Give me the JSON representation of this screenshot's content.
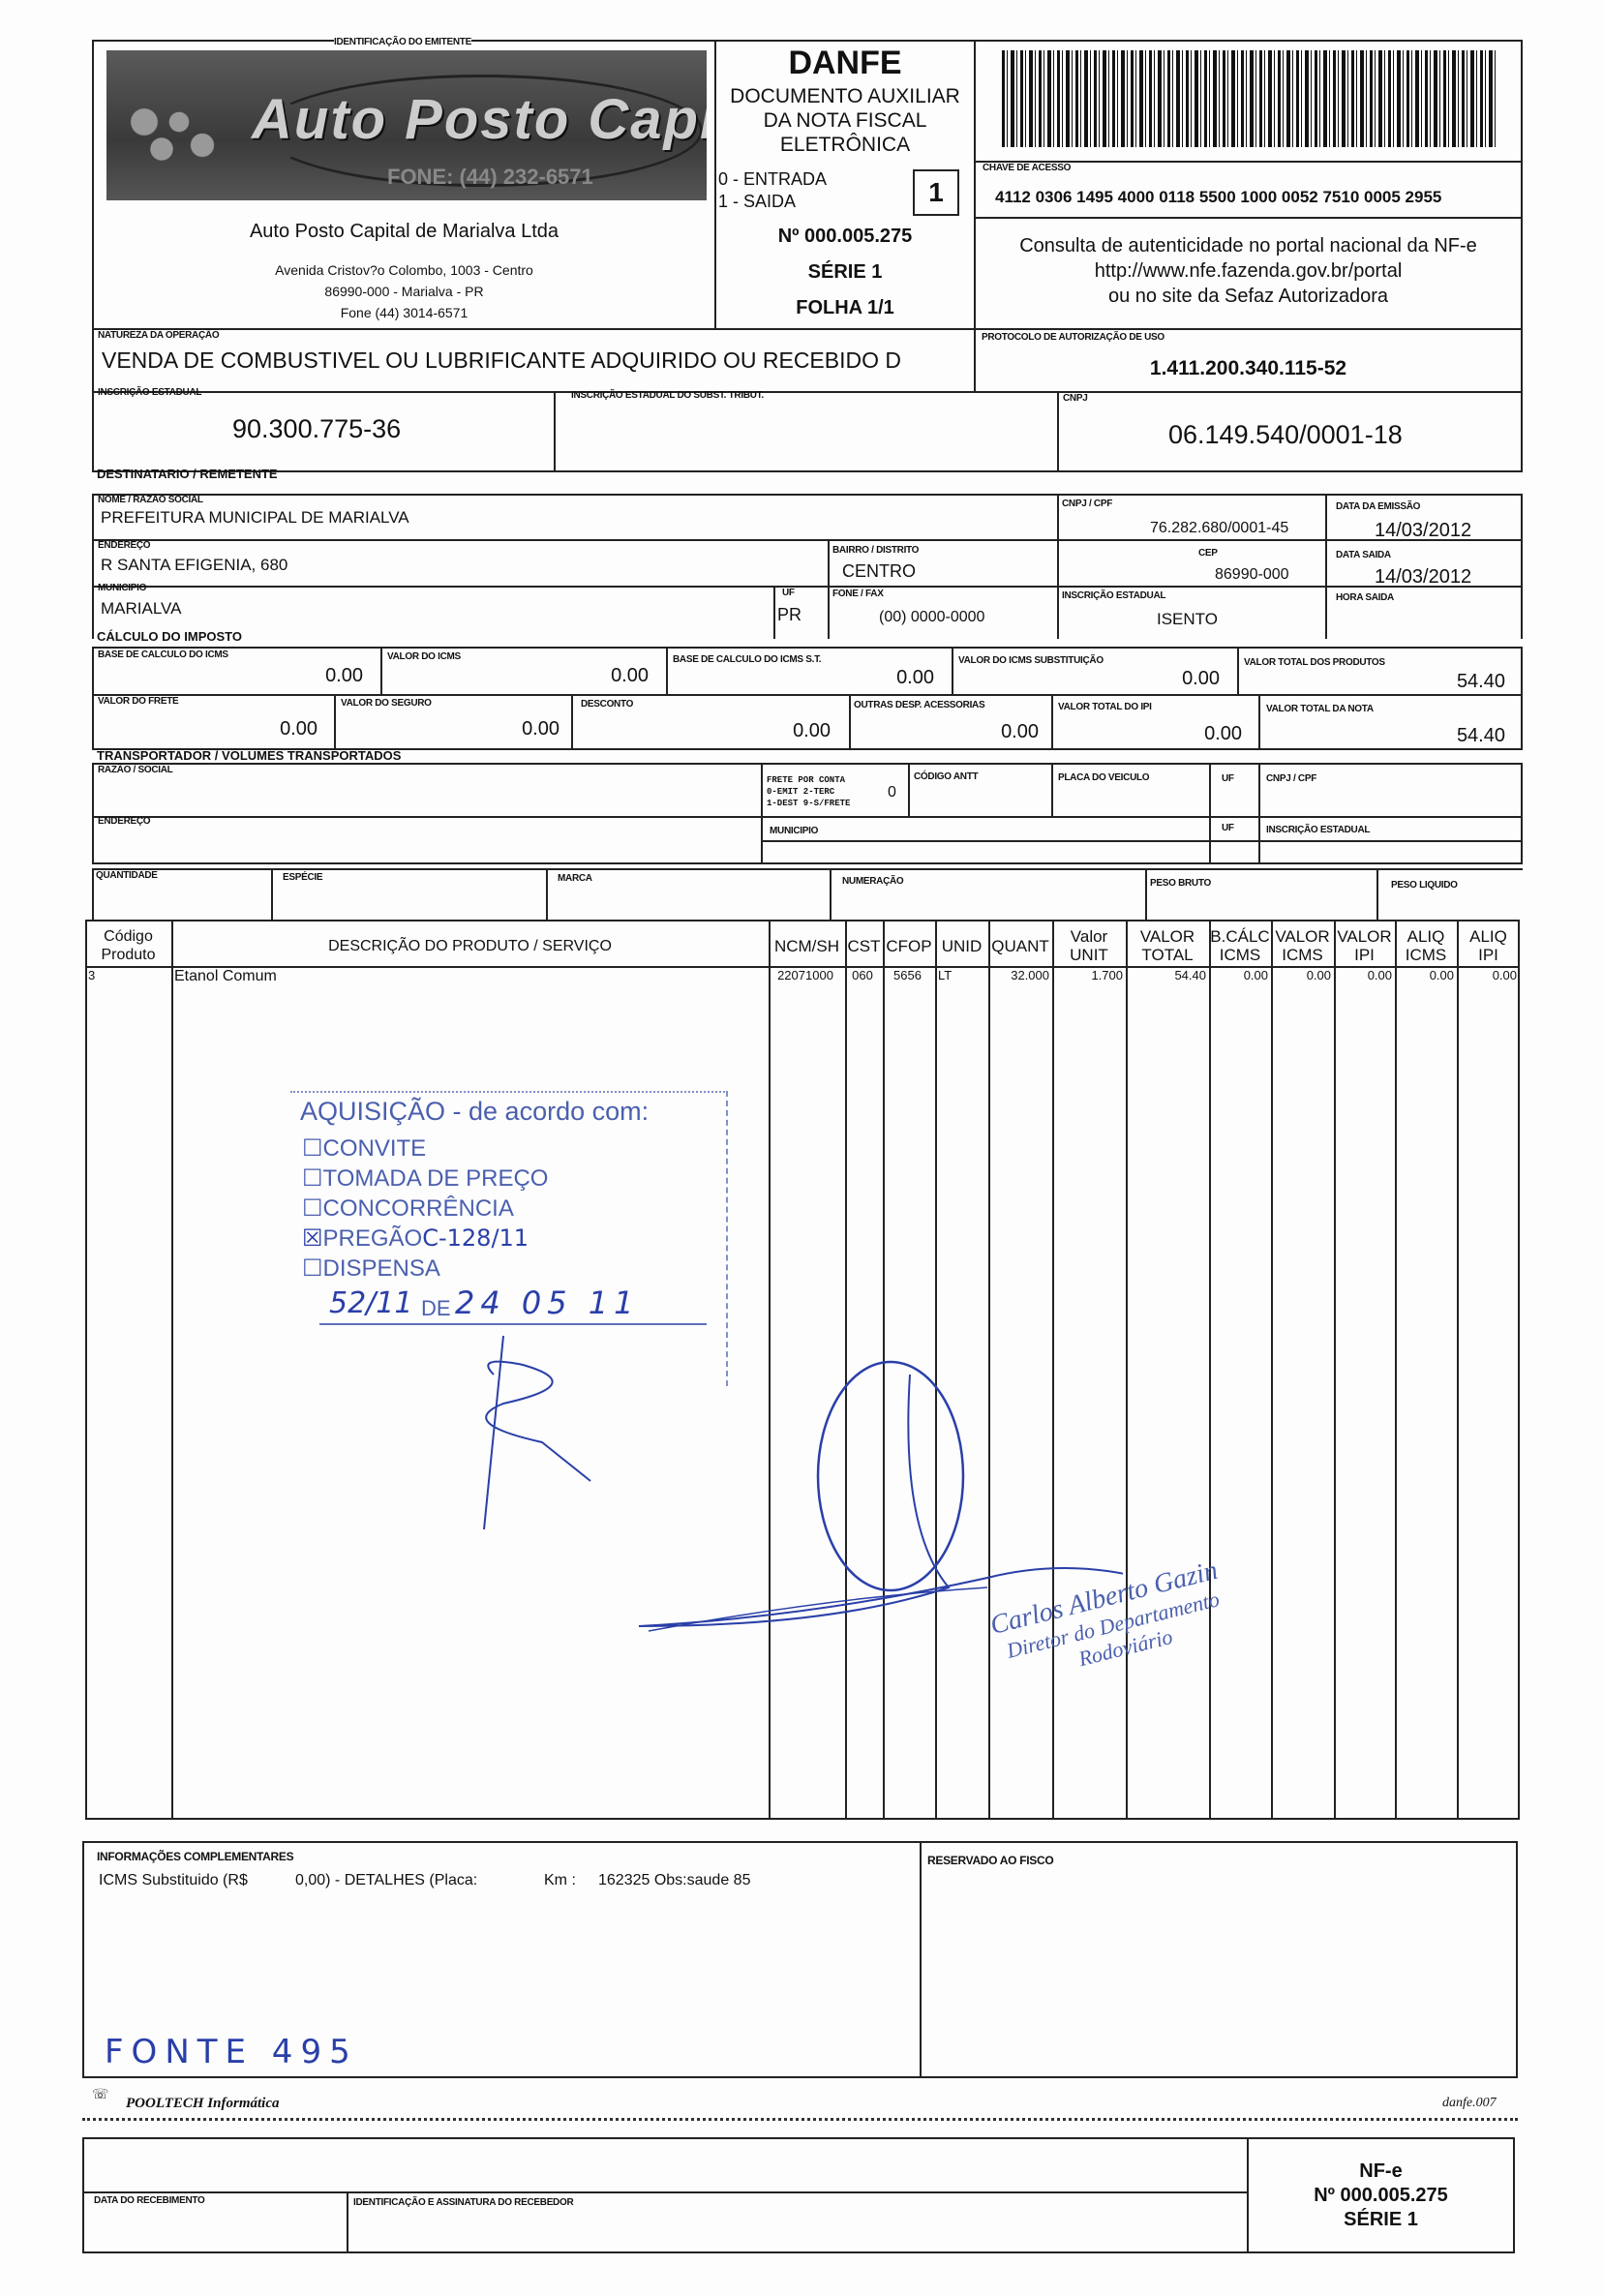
{
  "emitente": {
    "section_label": "IDENTIFICAÇÃO DO EMITENTE",
    "logo_text": "Auto Posto Capital",
    "logo_phone": "FONE: (44) 232-6571",
    "name": "Auto Posto Capital de Marialva Ltda",
    "address1": "Avenida Cristov?o Colombo, 1003 - Centro",
    "address2": "86990-000 - Marialva - PR",
    "phone": "Fone (44) 3014-6571"
  },
  "danfe": {
    "title": "DANFE",
    "subtitle1": "DOCUMENTO AUXILIAR",
    "subtitle2": "DA NOTA FISCAL",
    "subtitle3": "ELETRÔNICA",
    "entrada": "0 - ENTRADA",
    "saida": "1 - SAIDA",
    "tipo": "1",
    "numero": "Nº 000.005.275",
    "serie": "SÉRIE 1",
    "folha": "FOLHA 1/1"
  },
  "chave": {
    "label": "CHAVE DE ACESSO",
    "value": "4112 0306 1495 4000 0118 5500 1000 0052 7510 0005 2955"
  },
  "consulta": {
    "line1": "Consulta de autenticidade no portal nacional da NF-e",
    "line2": "http://www.nfe.fazenda.gov.br/portal",
    "line3": "ou no site da Sefaz Autorizadora"
  },
  "natureza": {
    "label": "NATUREZA DA OPERAÇÃO",
    "value": "VENDA DE COMBUSTIVEL OU LUBRIFICANTE ADQUIRIDO OU RECEBIDO D"
  },
  "protocolo": {
    "label": "PROTOCOLO DE AUTORIZAÇÃO DE USO",
    "value": "1.411.200.340.115-52"
  },
  "inscricao": {
    "ie_label": "INSCRIÇÃO ESTADUAL",
    "ie_value": "90.300.775-36",
    "ie_st_label": "INSCRIÇÃO ESTADUAL DO SUBST. TRIBUT.",
    "cnpj_label": "CNPJ",
    "cnpj_value": "06.149.540/0001-18"
  },
  "destinatario": {
    "section_label": "DESTINATARIO / REMETENTE",
    "nome_label": "NOME / RAZÃO SOCIAL",
    "nome": "PREFEITURA MUNICIPAL DE MARIALVA",
    "cnpj_label": "CNPJ / CPF",
    "cnpj": "76.282.680/0001-45",
    "data_emissao_label": "DATA DA EMISSÃO",
    "data_emissao": "14/03/2012",
    "endereco_label": "ENDEREÇO",
    "endereco": "R SANTA EFIGENIA, 680",
    "bairro_label": "BAIRRO / DISTRITO",
    "bairro": "CENTRO",
    "cep_label": "CEP",
    "cep": "86990-000",
    "data_saida_label": "DATA SAIDA",
    "data_saida": "14/03/2012",
    "municipio_label": "MUNICIPIO",
    "municipio": "MARIALVA",
    "uf_label": "UF",
    "uf": "PR",
    "fone_label": "FONE / FAX",
    "fone": "(00) 0000-0000",
    "ie_label": "INSCRIÇÃO ESTADUAL",
    "ie": "ISENTO",
    "hora_label": "HORA SAIDA"
  },
  "imposto": {
    "section_label": "CÁLCULO DO IMPOSTO",
    "row1": [
      {
        "label": "BASE DE CALCULO DO ICMS",
        "value": "0.00"
      },
      {
        "label": "VALOR DO ICMS",
        "value": "0.00"
      },
      {
        "label": "BASE DE CALCULO DO ICMS S.T.",
        "value": "0.00"
      },
      {
        "label": "VALOR DO ICMS SUBSTITUIÇÃO",
        "value": "0.00"
      },
      {
        "label": "VALOR TOTAL DOS PRODUTOS",
        "value": "54.40"
      }
    ],
    "row2": [
      {
        "label": "VALOR DO FRETE",
        "value": "0.00"
      },
      {
        "label": "VALOR DO SEGURO",
        "value": "0.00"
      },
      {
        "label": "DESCONTO",
        "value": "0.00"
      },
      {
        "label": "OUTRAS DESP. ACESSORIAS",
        "value": "0.00"
      },
      {
        "label": "VALOR TOTAL DO IPI",
        "value": "0.00"
      },
      {
        "label": "VALOR TOTAL DA NOTA",
        "value": "54.40"
      }
    ]
  },
  "transportador": {
    "section_label": "TRANSPORTADOR / VOLUMES TRANSPORTADOS",
    "razao_label": "RAZÃO / SOCIAL",
    "frete_line1": "FRETE POR CONTA",
    "frete_line2": "0-EMIT 2-TERC",
    "frete_line3": "1-DEST 9-S/FRETE",
    "frete_value": "0",
    "antt_label": "CÓDIGO ANTT",
    "placa_label": "PLACA DO VEICULO",
    "uf_label": "UF",
    "cnpj_label": "CNPJ / CPF",
    "endereco_label": "ENDEREÇO",
    "municipio_label": "MUNICIPIO",
    "uf2_label": "UF",
    "ie_label": "INSCRIÇÃO ESTADUAL",
    "quantidade_label": "QUANTIDADE",
    "especie_label": "ESPÉCIE",
    "marca_label": "MARCA",
    "numeracao_label": "NUMERAÇÃO",
    "peso_bruto_label": "PESO BRUTO",
    "peso_liquido_label": "PESO LIQUIDO"
  },
  "produtos": {
    "headers": [
      [
        "Código",
        "Produto"
      ],
      [
        "DESCRIÇÃO DO PRODUTO / SERVIÇO"
      ],
      [
        "NCM/SH"
      ],
      [
        "CST"
      ],
      [
        "CFOP"
      ],
      [
        "UNID"
      ],
      [
        "QUANT"
      ],
      [
        "Valor",
        "UNIT"
      ],
      [
        "VALOR",
        "TOTAL"
      ],
      [
        "B.CÁLC",
        "ICMS"
      ],
      [
        "VALOR",
        "ICMS"
      ],
      [
        "VALOR",
        "IPI"
      ],
      [
        "ALIQ",
        "ICMS"
      ],
      [
        "ALIQ",
        "IPI"
      ]
    ],
    "rows": [
      [
        "3",
        "Etanol Comum",
        "22071000",
        "060",
        "5656",
        "LT",
        "32.000",
        "1.700",
        "54.40",
        "0.00",
        "0.00",
        "0.00",
        "0.00",
        "0.00"
      ]
    ]
  },
  "carimbo": {
    "title": "AQUISIÇÃO - de acordo com:",
    "options": [
      {
        "label": "CONVITE",
        "checked": false
      },
      {
        "label": "TOMADA DE PREÇO",
        "checked": false
      },
      {
        "label": "CONCORRÊNCIA",
        "checked": false
      },
      {
        "label": "PREGÃO",
        "checked": true,
        "handwritten": "C-128/11"
      },
      {
        "label": "DISPENSA",
        "checked": false
      }
    ],
    "date_prefix": "52/11",
    "date_de": "DE",
    "date_value": "24 05 11"
  },
  "assinatura": {
    "name": "Carlos Alberto Gazin",
    "title1": "Diretor do Departamento",
    "title2": "Rodoviário"
  },
  "info": {
    "label": "INFORMAÇÕES COMPLEMENTARES",
    "text1": "ICMS Substituido (R$",
    "text2": "0,00)  -  DETALHES (Placa:",
    "text3": "Km :",
    "text4": "162325 Obs:saude 85",
    "handwritten": "FONTE 495",
    "fisco_label": "RESERVADO AO FISCO"
  },
  "footer": {
    "software": "POOLTECH Informática",
    "form": "danfe.007"
  },
  "canhoto": {
    "data_label": "DATA DO RECEBIMENTO",
    "assinatura_label": "IDENTIFICAÇÃO E ASSINATURA DO RECEBEDOR",
    "nfe": "NF-e",
    "numero": "Nº 000.005.275",
    "serie": "SÉRIE 1"
  },
  "colors": {
    "ink": "#111111",
    "stamp": "#4a5fae",
    "pen": "#2a3fa8"
  }
}
